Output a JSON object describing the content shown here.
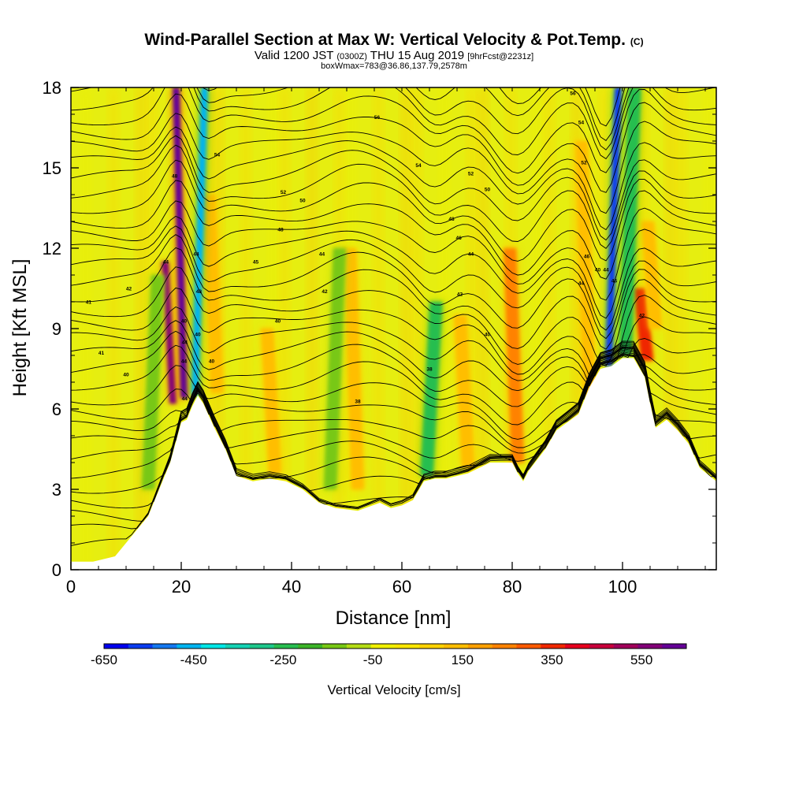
{
  "chart_data": {
    "type": "heatmap",
    "title": "Wind-Parallel Section at Max W: Vertical Velocity & Pot.Temp.",
    "title_mark": "(C)",
    "subtitle": {
      "main_a": "Valid 1200 JST ",
      "zulu": "(0300Z)",
      "main_b": " THU 15 Aug 2019 ",
      "fcst": "[9hrFcst@2231z]"
    },
    "note": "boxWmax=783@36.86,137.79,2578m",
    "xlabel": "Distance [nm]",
    "ylabel": "Height [Kft MSL]",
    "xlim": [
      0,
      117
    ],
    "ylim": [
      0,
      18
    ],
    "x_ticks": [
      0,
      20,
      40,
      60,
      80,
      100
    ],
    "y_ticks": [
      0,
      3,
      6,
      9,
      12,
      15,
      18
    ],
    "colorbar": {
      "label": "Vertical Velocity [cm/s]",
      "range": [
        -650,
        650
      ],
      "tick_labels": [
        "-650",
        "-450",
        "-250",
        "-50",
        "150",
        "350",
        "550"
      ],
      "tick_values": [
        -650,
        -450,
        -250,
        -50,
        150,
        350,
        550
      ],
      "colors": [
        "#0000ee",
        "#0a3cf0",
        "#1478f0",
        "#00b4f0",
        "#00e6e6",
        "#14d2b4",
        "#1ec88c",
        "#28be50",
        "#3cb428",
        "#78c814",
        "#b4dc14",
        "#f0f000",
        "#fae600",
        "#ffd200",
        "#ffbe00",
        "#ffa000",
        "#ff8200",
        "#ff5a00",
        "#f02800",
        "#e6001e",
        "#c8003c",
        "#a0005a",
        "#820078",
        "#640096"
      ]
    },
    "terrain_profile": {
      "x": [
        0,
        4,
        8,
        10,
        12,
        14,
        16,
        18,
        20,
        21,
        22,
        23,
        24,
        26,
        28,
        30,
        33,
        36,
        39,
        42,
        45,
        48,
        52,
        56,
        58,
        60,
        62,
        64,
        66,
        68,
        70,
        72,
        74,
        76,
        78,
        80,
        81,
        82,
        83,
        86,
        88,
        90,
        92,
        94,
        96,
        98,
        100,
        102,
        104,
        105,
        106,
        108,
        110,
        112,
        114,
        117
      ],
      "y": [
        0.3,
        0.3,
        0.5,
        1.0,
        1.5,
        2.0,
        3.0,
        4.0,
        5.5,
        5.6,
        6.1,
        6.5,
        6.2,
        5.3,
        4.5,
        3.5,
        3.3,
        3.4,
        3.3,
        3.0,
        2.5,
        2.3,
        2.2,
        2.5,
        2.3,
        2.4,
        2.6,
        3.3,
        3.4,
        3.4,
        3.5,
        3.6,
        3.8,
        4.0,
        4.0,
        4.0,
        3.6,
        3.3,
        3.7,
        4.5,
        5.2,
        5.5,
        5.8,
        6.8,
        7.5,
        7.6,
        7.9,
        7.9,
        7.2,
        6.2,
        5.3,
        5.6,
        5.2,
        4.7,
        3.8,
        3.3
      ]
    },
    "updrafts": [
      {
        "x": 18.5,
        "z0": 6.2,
        "z1": 11.5,
        "value": 550
      },
      {
        "x": 20.5,
        "z0": 6.4,
        "z1": 18,
        "value": 650
      },
      {
        "x": 26.5,
        "z0": 6.6,
        "z1": 14,
        "value": 150
      },
      {
        "x": 37,
        "z0": 3.6,
        "z1": 9,
        "value": 150
      },
      {
        "x": 52,
        "z0": 3,
        "z1": 12,
        "value": 150
      },
      {
        "x": 72,
        "z0": 3.8,
        "z1": 9.5,
        "value": 150
      },
      {
        "x": 81,
        "z0": 4,
        "z1": 12,
        "value": 250
      },
      {
        "x": 94,
        "z0": 6.5,
        "z1": 16,
        "value": 150
      },
      {
        "x": 104.5,
        "z0": 7.8,
        "z1": 10.5,
        "value": 350
      },
      {
        "x": 106,
        "z0": 9,
        "z1": 13,
        "value": 150
      }
    ],
    "downdrafts": [
      {
        "x": 22.5,
        "z0": 6.5,
        "z1": 18,
        "value": -450
      },
      {
        "x": 14,
        "z0": 3,
        "z1": 11,
        "value": -150
      },
      {
        "x": 47,
        "z0": 3,
        "z1": 12,
        "value": -150
      },
      {
        "x": 64.5,
        "z0": 3.5,
        "z1": 10,
        "value": -250
      },
      {
        "x": 97.5,
        "z0": 7.6,
        "z1": 18,
        "value": -550
      },
      {
        "x": 100.5,
        "z0": 8,
        "z1": 18,
        "value": -250
      }
    ],
    "theta_labels": [
      {
        "x": 10.5,
        "z": 10.5,
        "text": "42"
      },
      {
        "x": 3.2,
        "z": 10.0,
        "text": "41"
      },
      {
        "x": 5.5,
        "z": 8.1,
        "text": "41"
      },
      {
        "x": 10,
        "z": 7.3,
        "text": "40"
      },
      {
        "x": 17.2,
        "z": 11.5,
        "text": "44"
      },
      {
        "x": 18.8,
        "z": 14.7,
        "text": "48"
      },
      {
        "x": 20.6,
        "z": 6.4,
        "text": "44"
      },
      {
        "x": 20.5,
        "z": 9.3,
        "text": "40"
      },
      {
        "x": 20.6,
        "z": 8.5,
        "text": "44"
      },
      {
        "x": 20.5,
        "z": 7.8,
        "text": "44"
      },
      {
        "x": 22.7,
        "z": 11.8,
        "text": "44"
      },
      {
        "x": 23.2,
        "z": 10.4,
        "text": "48"
      },
      {
        "x": 23.0,
        "z": 8.8,
        "text": "40"
      },
      {
        "x": 25.5,
        "z": 7.8,
        "text": "40"
      },
      {
        "x": 26.5,
        "z": 15.5,
        "text": "54"
      },
      {
        "x": 33.5,
        "z": 11.5,
        "text": "45"
      },
      {
        "x": 37.5,
        "z": 9.3,
        "text": "40"
      },
      {
        "x": 38,
        "z": 12.7,
        "text": "48"
      },
      {
        "x": 38.5,
        "z": 14.1,
        "text": "52"
      },
      {
        "x": 42,
        "z": 13.8,
        "text": "50"
      },
      {
        "x": 45.5,
        "z": 11.8,
        "text": "44"
      },
      {
        "x": 46,
        "z": 10.4,
        "text": "42"
      },
      {
        "x": 52,
        "z": 6.3,
        "text": "38"
      },
      {
        "x": 55.5,
        "z": 16.9,
        "text": "56"
      },
      {
        "x": 63,
        "z": 15.1,
        "text": "54"
      },
      {
        "x": 65,
        "z": 7.5,
        "text": "38"
      },
      {
        "x": 69,
        "z": 13.1,
        "text": "48"
      },
      {
        "x": 70.3,
        "z": 12.4,
        "text": "46"
      },
      {
        "x": 70.5,
        "z": 10.3,
        "text": "42"
      },
      {
        "x": 72.5,
        "z": 11.8,
        "text": "44"
      },
      {
        "x": 72.5,
        "z": 14.8,
        "text": "52"
      },
      {
        "x": 75.5,
        "z": 8.8,
        "text": "40"
      },
      {
        "x": 75.5,
        "z": 14.2,
        "text": "50"
      },
      {
        "x": 92.5,
        "z": 16.7,
        "text": "54"
      },
      {
        "x": 91,
        "z": 17.8,
        "text": "56"
      },
      {
        "x": 93,
        "z": 15.2,
        "text": "52"
      },
      {
        "x": 93.5,
        "z": 11.7,
        "text": "46"
      },
      {
        "x": 92.5,
        "z": 10.7,
        "text": "44"
      },
      {
        "x": 95.5,
        "z": 11.2,
        "text": "40"
      },
      {
        "x": 97,
        "z": 11.2,
        "text": "44"
      },
      {
        "x": 98.5,
        "z": 10.8,
        "text": "46"
      },
      {
        "x": 103.5,
        "z": 9.5,
        "text": "42"
      }
    ]
  }
}
